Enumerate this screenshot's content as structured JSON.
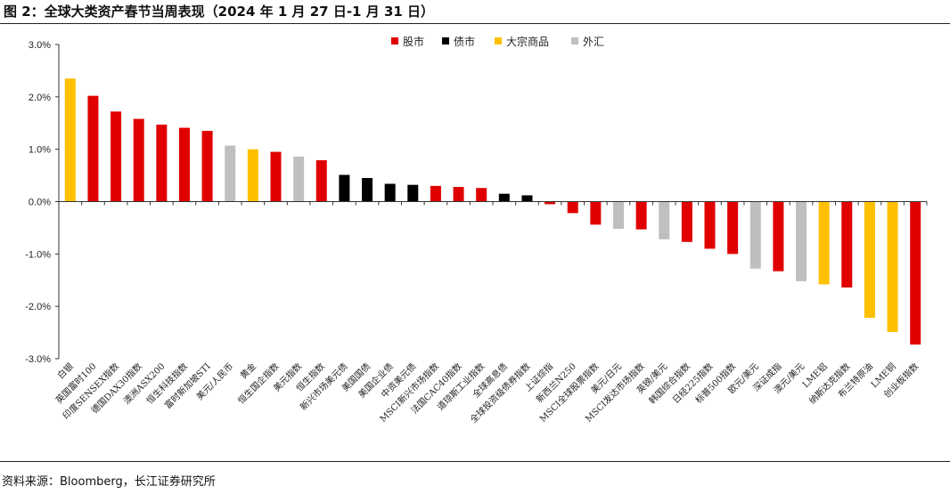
{
  "figure": {
    "title": "图 2：全球大类资产春节当周表现（2024 年 1 月 27 日-1 月 31 日）",
    "source": "资料来源：Bloomberg，长江证券研究所"
  },
  "chart_data": {
    "type": "bar",
    "title": "",
    "xlabel": "",
    "ylabel": "",
    "ylim": [
      -0.03,
      0.03
    ],
    "yticks": [
      0.03,
      0.02,
      0.01,
      0.0,
      -0.01,
      -0.02,
      -0.03
    ],
    "ytick_labels": [
      "3.0%",
      "2.0%",
      "1.0%",
      "0.0%",
      "-1.0%",
      "-2.0%",
      "-3.0%"
    ],
    "grid": false,
    "legend_position": "top-center",
    "legend": [
      {
        "name": "股市",
        "color": "#e00000"
      },
      {
        "name": "债市",
        "color": "#000000"
      },
      {
        "name": "大宗商品",
        "color": "#ffc000"
      },
      {
        "name": "外汇",
        "color": "#bfbfbf"
      }
    ],
    "categories": [
      "白银",
      "英国富时100",
      "印度SENSEX指数",
      "德国DAX30指数",
      "澳洲ASX200",
      "恒生科技指数",
      "富时新加坡STI",
      "美元/人民币",
      "黄金",
      "恒生国企指数",
      "美元指数",
      "恒生指数",
      "新兴市场美元债",
      "美国国债",
      "美国企业债",
      "中资美元债",
      "MSCI新兴市场指数",
      "法国CAC40指数",
      "道琼斯工业指数",
      "全球高息债",
      "全球投资级债券指数",
      "上证综指",
      "新西兰N250",
      "MSCI全球股票指数",
      "美元/日元",
      "MSCI发达市场指数",
      "英镑/美元",
      "韩国综合指数",
      "日经225指数",
      "标普500指数",
      "欧元/美元",
      "深证成指",
      "澳元/美元",
      "LME铝",
      "纳斯达克指数",
      "布兰特原油",
      "LME铜",
      "创业板指数"
    ],
    "values": [
      0.0235,
      0.0202,
      0.0172,
      0.0158,
      0.0147,
      0.0141,
      0.0135,
      0.0107,
      0.01,
      0.0095,
      0.0086,
      0.0079,
      0.0051,
      0.0045,
      0.0034,
      0.0032,
      0.003,
      0.0028,
      0.0026,
      0.0015,
      0.0012,
      -0.0005,
      -0.0022,
      -0.0044,
      -0.0052,
      -0.0053,
      -0.0072,
      -0.0077,
      -0.009,
      -0.01,
      -0.0128,
      -0.0133,
      -0.0152,
      -0.0158,
      -0.0164,
      -0.0222,
      -0.0249,
      -0.0273
    ],
    "asset_class": [
      "大宗商品",
      "股市",
      "股市",
      "股市",
      "股市",
      "股市",
      "股市",
      "外汇",
      "大宗商品",
      "股市",
      "外汇",
      "股市",
      "债市",
      "债市",
      "债市",
      "债市",
      "股市",
      "股市",
      "股市",
      "债市",
      "债市",
      "股市",
      "股市",
      "股市",
      "外汇",
      "股市",
      "外汇",
      "股市",
      "股市",
      "股市",
      "外汇",
      "股市",
      "外汇",
      "大宗商品",
      "股市",
      "大宗商品",
      "大宗商品",
      "股市"
    ]
  }
}
